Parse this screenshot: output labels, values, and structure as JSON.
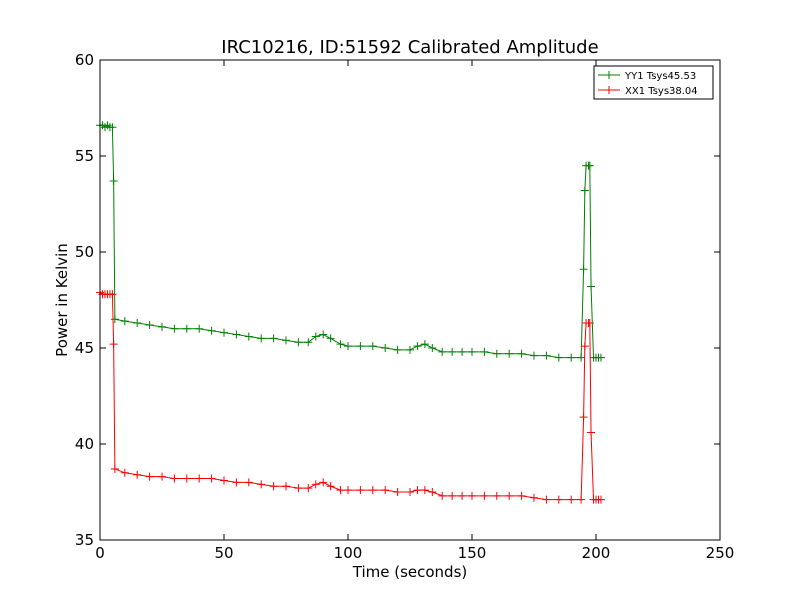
{
  "chart_data": {
    "type": "line",
    "title": "IRC10216, ID:51592 Calibrated Amplitude",
    "xlabel": "Time (seconds)",
    "ylabel": "Power in Kelvin",
    "xlim": [
      0,
      250
    ],
    "ylim": [
      35,
      60
    ],
    "xticks": [
      0,
      50,
      100,
      150,
      200,
      250
    ],
    "yticks": [
      35,
      40,
      45,
      50,
      55,
      60
    ],
    "grid": false,
    "legend_position": "top-right",
    "marker": "plus",
    "series": [
      {
        "name": "YY1 Tsys45.53",
        "color": "#008000",
        "x": [
          0,
          1,
          2,
          3,
          4,
          5,
          5.5,
          6,
          10,
          15,
          20,
          25,
          30,
          35,
          40,
          45,
          50,
          55,
          60,
          65,
          70,
          75,
          80,
          84,
          87,
          90,
          93,
          97,
          100,
          105,
          110,
          115,
          120,
          125,
          128,
          131,
          134,
          138,
          142,
          146,
          150,
          155,
          160,
          165,
          170,
          175,
          180,
          185,
          190,
          194,
          195,
          195.5,
          196,
          197,
          197.5,
          198,
          199,
          200,
          201,
          202
        ],
        "y": [
          56.6,
          56.6,
          56.5,
          56.6,
          56.5,
          56.5,
          53.7,
          46.5,
          46.4,
          46.3,
          46.2,
          46.1,
          46.0,
          46.0,
          46.0,
          45.9,
          45.8,
          45.7,
          45.6,
          45.5,
          45.5,
          45.4,
          45.3,
          45.3,
          45.6,
          45.7,
          45.5,
          45.2,
          45.1,
          45.1,
          45.1,
          45.0,
          44.9,
          44.9,
          45.1,
          45.2,
          45.0,
          44.8,
          44.8,
          44.8,
          44.8,
          44.8,
          44.7,
          44.7,
          44.7,
          44.6,
          44.6,
          44.5,
          44.5,
          44.5,
          49.1,
          53.2,
          54.5,
          54.5,
          54.5,
          48.2,
          44.5,
          44.5,
          44.5,
          44.5
        ]
      },
      {
        "name": "XX1 Tsys38.04",
        "color": "#ff0000",
        "x": [
          0,
          1,
          2,
          3,
          4,
          5,
          5.5,
          6,
          10,
          15,
          20,
          25,
          30,
          35,
          40,
          45,
          50,
          55,
          60,
          65,
          70,
          75,
          80,
          84,
          87,
          90,
          93,
          97,
          100,
          105,
          110,
          115,
          120,
          125,
          128,
          131,
          134,
          138,
          142,
          146,
          150,
          155,
          160,
          165,
          170,
          175,
          180,
          185,
          190,
          194,
          195,
          195.5,
          196,
          197,
          197.5,
          198,
          199,
          200,
          201,
          202
        ],
        "y": [
          47.9,
          47.8,
          47.8,
          47.8,
          47.8,
          47.8,
          45.2,
          38.7,
          38.5,
          38.4,
          38.3,
          38.3,
          38.2,
          38.2,
          38.2,
          38.2,
          38.1,
          38.0,
          38.0,
          37.9,
          37.8,
          37.8,
          37.7,
          37.7,
          37.9,
          38.0,
          37.8,
          37.6,
          37.6,
          37.6,
          37.6,
          37.6,
          37.5,
          37.5,
          37.6,
          37.6,
          37.5,
          37.3,
          37.3,
          37.3,
          37.3,
          37.3,
          37.3,
          37.3,
          37.3,
          37.2,
          37.1,
          37.1,
          37.1,
          37.1,
          41.4,
          45.1,
          46.3,
          46.3,
          46.3,
          40.6,
          37.1,
          37.1,
          37.1,
          37.1
        ]
      }
    ]
  }
}
